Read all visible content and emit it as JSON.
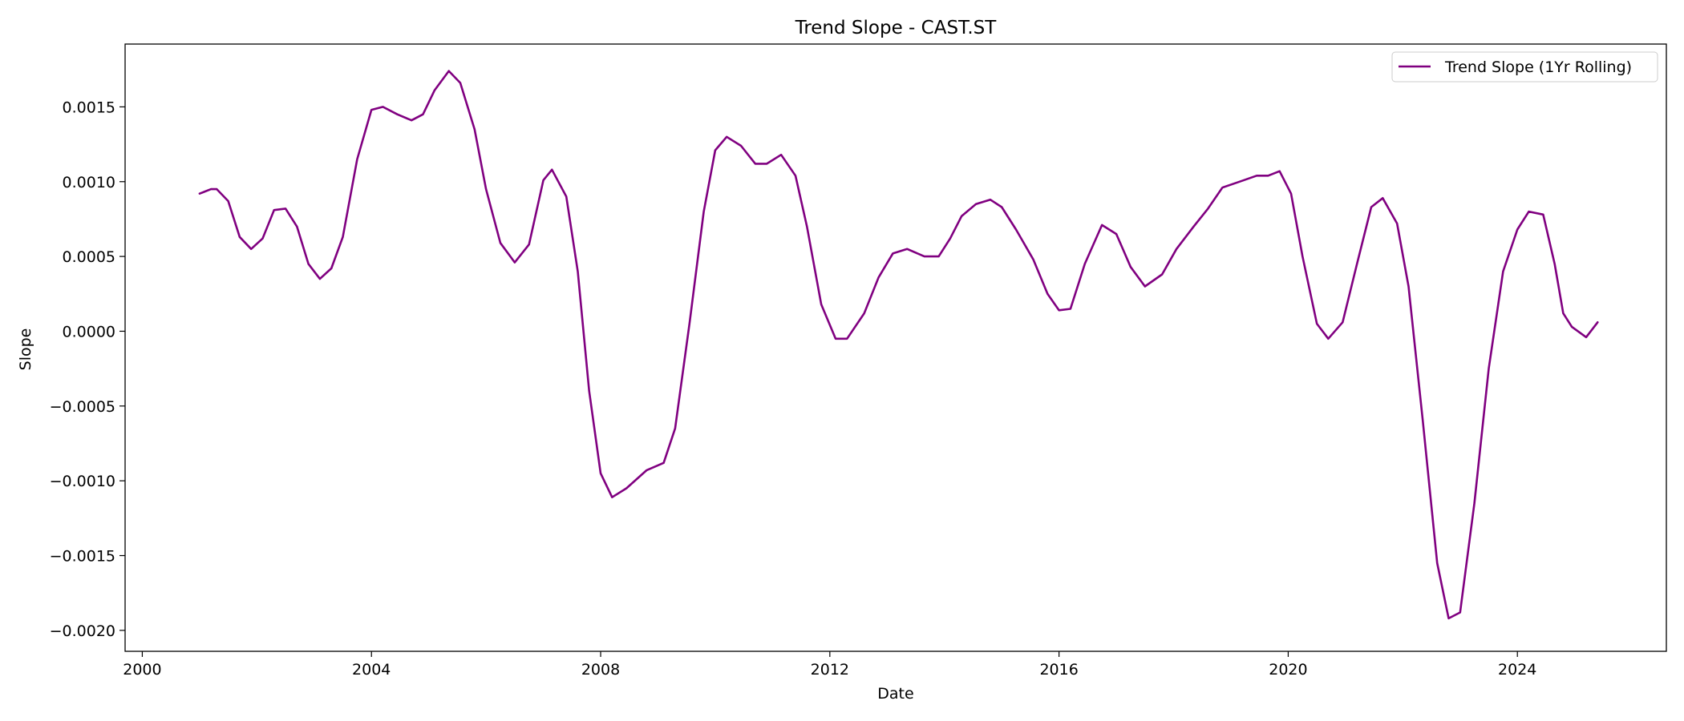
{
  "chart_data": {
    "type": "line",
    "title": "Trend Slope - CAST.ST",
    "xlabel": "Date",
    "ylabel": "Slope",
    "xlim": [
      1999.7,
      2026.6
    ],
    "ylim": [
      -0.00214,
      0.00192
    ],
    "x_ticks": [
      2000,
      2004,
      2008,
      2012,
      2016,
      2020,
      2024
    ],
    "x_tick_labels": [
      "2000",
      "2004",
      "2008",
      "2012",
      "2016",
      "2020",
      "2024"
    ],
    "y_ticks": [
      0.0015,
      0.001,
      0.0005,
      0.0,
      -0.0005,
      -0.001,
      -0.0015,
      -0.002
    ],
    "y_tick_labels": [
      "0.0015",
      "0.0010",
      "0.0005",
      "0.0000",
      "−0.0005",
      "−0.0010",
      "−0.0015",
      "−0.0020"
    ],
    "grid": false,
    "legend_position": "top-right",
    "series": [
      {
        "name": "Trend Slope (1Yr Rolling)",
        "color": "#800080",
        "x": [
          2001.0,
          2001.2,
          2001.3,
          2001.5,
          2001.7,
          2001.9,
          2002.1,
          2002.3,
          2002.5,
          2002.7,
          2002.9,
          2003.1,
          2003.3,
          2003.5,
          2003.75,
          2004.0,
          2004.2,
          2004.45,
          2004.7,
          2004.9,
          2005.1,
          2005.35,
          2005.55,
          2005.8,
          2006.0,
          2006.25,
          2006.5,
          2006.75,
          2007.0,
          2007.15,
          2007.4,
          2007.6,
          2007.8,
          2008.0,
          2008.2,
          2008.45,
          2008.8,
          2009.1,
          2009.3,
          2009.55,
          2009.8,
          2010.0,
          2010.2,
          2010.45,
          2010.7,
          2010.9,
          2011.15,
          2011.4,
          2011.6,
          2011.85,
          2012.1,
          2012.3,
          2012.6,
          2012.85,
          2013.1,
          2013.35,
          2013.65,
          2013.9,
          2014.1,
          2014.3,
          2014.55,
          2014.8,
          2015.0,
          2015.25,
          2015.55,
          2015.8,
          2016.0,
          2016.2,
          2016.45,
          2016.75,
          2017.0,
          2017.25,
          2017.5,
          2017.8,
          2018.05,
          2018.35,
          2018.6,
          2018.85,
          2019.15,
          2019.45,
          2019.65,
          2019.85,
          2020.05,
          2020.25,
          2020.5,
          2020.7,
          2020.95,
          2021.2,
          2021.45,
          2021.65,
          2021.9,
          2022.1,
          2022.35,
          2022.6,
          2022.8,
          2023.0,
          2023.25,
          2023.5,
          2023.75,
          2024.0,
          2024.2,
          2024.45,
          2024.65,
          2024.8,
          2024.95,
          2025.2,
          2025.4
        ],
        "y": [
          0.00092,
          0.00095,
          0.00095,
          0.00087,
          0.00063,
          0.00055,
          0.00062,
          0.00081,
          0.00082,
          0.0007,
          0.00045,
          0.00035,
          0.00042,
          0.00063,
          0.00115,
          0.00148,
          0.0015,
          0.00145,
          0.00141,
          0.00145,
          0.00161,
          0.00174,
          0.00166,
          0.00135,
          0.00095,
          0.00059,
          0.00046,
          0.00058,
          0.00101,
          0.00108,
          0.0009,
          0.0004,
          -0.0004,
          -0.00095,
          -0.00111,
          -0.00105,
          -0.00093,
          -0.00088,
          -0.00065,
          5e-05,
          0.0008,
          0.00121,
          0.0013,
          0.00124,
          0.00112,
          0.00112,
          0.00118,
          0.00104,
          0.0007,
          0.00018,
          -5e-05,
          -5e-05,
          0.00012,
          0.00036,
          0.00052,
          0.00055,
          0.0005,
          0.0005,
          0.00062,
          0.00077,
          0.00085,
          0.00088,
          0.00083,
          0.00068,
          0.00048,
          0.00025,
          0.00014,
          0.00015,
          0.00045,
          0.00071,
          0.00065,
          0.00043,
          0.0003,
          0.00038,
          0.00055,
          0.0007,
          0.00082,
          0.00096,
          0.001,
          0.00104,
          0.00104,
          0.00107,
          0.00092,
          0.0005,
          5e-05,
          -5e-05,
          6e-05,
          0.00045,
          0.00083,
          0.00089,
          0.00072,
          0.0003,
          -0.0006,
          -0.00155,
          -0.00192,
          -0.00188,
          -0.00115,
          -0.00025,
          0.0004,
          0.00068,
          0.0008,
          0.00078,
          0.00045,
          0.00012,
          3e-05,
          -4e-05,
          6e-05
        ]
      }
    ]
  }
}
